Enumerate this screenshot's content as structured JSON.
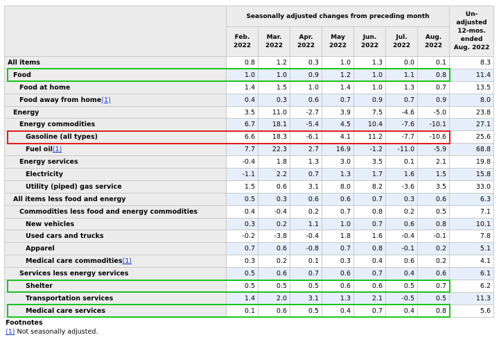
{
  "header": {
    "group_title": "Seasonally adjusted changes from preceding month",
    "months": [
      {
        "month": "Feb.",
        "year": "2022"
      },
      {
        "month": "Mar.",
        "year": "2022"
      },
      {
        "month": "Apr.",
        "year": "2022"
      },
      {
        "month": "May",
        "year": "2022"
      },
      {
        "month": "Jun.",
        "year": "2022"
      },
      {
        "month": "Jul.",
        "year": "2022"
      },
      {
        "month": "Aug.",
        "year": "2022"
      }
    ],
    "unadjusted_lines": [
      "Un-",
      "adjusted",
      "12-mos.",
      "ended",
      "Aug. 2022"
    ]
  },
  "rows": [
    {
      "label": "All items",
      "indent": 0,
      "footnote": "",
      "values": [
        "0.8",
        "1.2",
        "0.3",
        "1.0",
        "1.3",
        "0.0",
        "0.1"
      ],
      "unadjusted": "8.3"
    },
    {
      "label": "Food",
      "indent": 1,
      "footnote": "",
      "values": [
        "1.0",
        "1.0",
        "0.9",
        "1.2",
        "1.0",
        "1.1",
        "0.8"
      ],
      "unadjusted": "11.4"
    },
    {
      "label": "Food at home",
      "indent": 2,
      "footnote": "",
      "values": [
        "1.4",
        "1.5",
        "1.0",
        "1.4",
        "1.0",
        "1.3",
        "0.7"
      ],
      "unadjusted": "13.5"
    },
    {
      "label": "Food away from home",
      "indent": 2,
      "footnote": "(1)",
      "values": [
        "0.4",
        "0.3",
        "0.6",
        "0.7",
        "0.9",
        "0.7",
        "0.9"
      ],
      "unadjusted": "8.0"
    },
    {
      "label": "Energy",
      "indent": 1,
      "footnote": "",
      "values": [
        "3.5",
        "11.0",
        "-2.7",
        "3.9",
        "7.5",
        "-4.6",
        "-5.0"
      ],
      "unadjusted": "23.8"
    },
    {
      "label": "Energy commodities",
      "indent": 2,
      "footnote": "",
      "values": [
        "6.7",
        "18.1",
        "-5.4",
        "4.5",
        "10.4",
        "-7.6",
        "-10.1"
      ],
      "unadjusted": "27.1"
    },
    {
      "label": "Gasoline (all types)",
      "indent": 3,
      "footnote": "",
      "values": [
        "6.6",
        "18.3",
        "-6.1",
        "4.1",
        "11.2",
        "-7.7",
        "-10.6"
      ],
      "unadjusted": "25.6"
    },
    {
      "label": "Fuel oil",
      "indent": 3,
      "footnote": "(1)",
      "values": [
        "7.7",
        "22.3",
        "2.7",
        "16.9",
        "-1.2",
        "-11.0",
        "-5.9"
      ],
      "unadjusted": "68.8"
    },
    {
      "label": "Energy services",
      "indent": 2,
      "footnote": "",
      "values": [
        "-0.4",
        "1.8",
        "1.3",
        "3.0",
        "3.5",
        "0.1",
        "2.1"
      ],
      "unadjusted": "19.8"
    },
    {
      "label": "Electricity",
      "indent": 3,
      "footnote": "",
      "values": [
        "-1.1",
        "2.2",
        "0.7",
        "1.3",
        "1.7",
        "1.6",
        "1.5"
      ],
      "unadjusted": "15.8"
    },
    {
      "label": "Utility (piped) gas service",
      "indent": 3,
      "footnote": "",
      "values": [
        "1.5",
        "0.6",
        "3.1",
        "8.0",
        "8.2",
        "-3.6",
        "3.5"
      ],
      "unadjusted": "33.0"
    },
    {
      "label": "All items less food and energy",
      "indent": 1,
      "footnote": "",
      "values": [
        "0.5",
        "0.3",
        "0.6",
        "0.6",
        "0.7",
        "0.3",
        "0.6"
      ],
      "unadjusted": "6.3"
    },
    {
      "label": "Commodities less food and energy commodities",
      "indent": 2,
      "footnote": "",
      "values": [
        "0.4",
        "-0.4",
        "0.2",
        "0.7",
        "0.8",
        "0.2",
        "0.5"
      ],
      "unadjusted": "7.1"
    },
    {
      "label": "New vehicles",
      "indent": 3,
      "footnote": "",
      "values": [
        "0.3",
        "0.2",
        "1.1",
        "1.0",
        "0.7",
        "0.6",
        "0.8"
      ],
      "unadjusted": "10.1"
    },
    {
      "label": "Used cars and trucks",
      "indent": 3,
      "footnote": "",
      "values": [
        "-0.2",
        "-3.8",
        "-0.4",
        "1.8",
        "1.6",
        "-0.4",
        "-0.1"
      ],
      "unadjusted": "7.8"
    },
    {
      "label": "Apparel",
      "indent": 3,
      "footnote": "",
      "values": [
        "0.7",
        "0.6",
        "-0.8",
        "0.7",
        "0.8",
        "-0.1",
        "0.2"
      ],
      "unadjusted": "5.1"
    },
    {
      "label": "Medical care commodities",
      "indent": 3,
      "footnote": "(1)",
      "values": [
        "0.3",
        "0.2",
        "0.1",
        "0.3",
        "0.4",
        "0.6",
        "0.2"
      ],
      "unadjusted": "4.1"
    },
    {
      "label": "Services less energy services",
      "indent": 2,
      "footnote": "",
      "values": [
        "0.5",
        "0.6",
        "0.7",
        "0.6",
        "0.7",
        "0.4",
        "0.6"
      ],
      "unadjusted": "6.1"
    },
    {
      "label": "Shelter",
      "indent": 3,
      "footnote": "",
      "values": [
        "0.5",
        "0.5",
        "0.5",
        "0.6",
        "0.6",
        "0.5",
        "0.7"
      ],
      "unadjusted": "6.2"
    },
    {
      "label": "Transportation services",
      "indent": 3,
      "footnote": "",
      "values": [
        "1.4",
        "2.0",
        "3.1",
        "1.3",
        "2.1",
        "-0.5",
        "0.5"
      ],
      "unadjusted": "11.3"
    },
    {
      "label": "Medical care services",
      "indent": 3,
      "footnote": "",
      "values": [
        "0.1",
        "0.6",
        "0.5",
        "0.4",
        "0.7",
        "0.4",
        "0.8"
      ],
      "unadjusted": "5.6"
    }
  ],
  "highlights": [
    {
      "row": 1,
      "color": "#18c41e"
    },
    {
      "row": 6,
      "color": "#e41c1c"
    },
    {
      "row": 18,
      "color": "#18c41e"
    },
    {
      "row": 20,
      "color": "#18c41e"
    }
  ],
  "footnotes": {
    "title": "Footnotes",
    "items": [
      {
        "ref": "(1)",
        "text": " Not seasonally adjusted."
      }
    ]
  }
}
